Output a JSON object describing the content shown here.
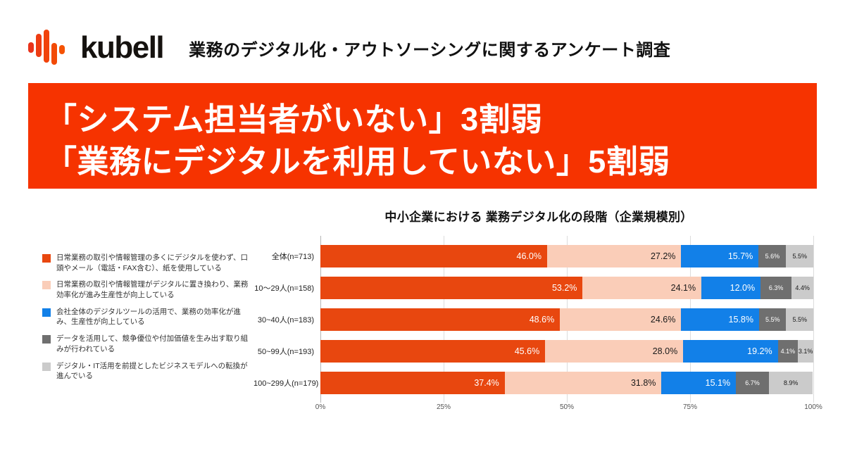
{
  "header": {
    "logo_text": "kubell",
    "logo_icon": "kubell-waveform-bars",
    "subtitle": "業務のデジタル化・アウトソーシングに関するアンケート調査"
  },
  "banner": {
    "line1": "「システム担当者がいない」3割弱",
    "line2": "「業務にデジタルを利用していない」5割弱",
    "background": "#F63300",
    "text_color": "#FFFFFF"
  },
  "chart_data": {
    "type": "bar",
    "stacked": true,
    "orientation": "horizontal",
    "title": "中小企業における 業務デジタル化の段階（企業規模別）",
    "categories": [
      "全体(n=713)",
      "10～29人(n=158)",
      "30~40人(n=183)",
      "50~99人(n=193)",
      "100~299人(n=179)"
    ],
    "series": [
      {
        "name": "日常業務の取引や情報管理の多くにデジタルを使わず、口頭やメール（電話・FAX含む）、紙を使用している",
        "color": "#E8470F",
        "label_color": "#FFFFFF",
        "label_align": "right",
        "values": [
          46.0,
          53.2,
          48.6,
          45.6,
          37.4
        ]
      },
      {
        "name": "日常業務の取引や情報管理がデジタルに置き換わり、業務効率化が進み生産性が向上している",
        "color": "#FACDB8",
        "label_color": "#1A1A1A",
        "label_align": "right",
        "values": [
          27.2,
          24.1,
          24.6,
          28.0,
          31.8
        ]
      },
      {
        "name": "会社全体のデジタルツールの活用で、業務の効率化が進み、生産性が向上している",
        "color": "#1280E8",
        "label_color": "#FFFFFF",
        "label_align": "right",
        "values": [
          15.7,
          12.0,
          15.8,
          19.2,
          15.1
        ]
      },
      {
        "name": "データを活用して、競争優位や付加価値を生み出す取り組みが行われている",
        "color": "#6F6F6F",
        "label_color": "#FFFFFF",
        "label_align": "center",
        "values": [
          5.6,
          6.3,
          5.5,
          4.1,
          6.7
        ]
      },
      {
        "name": "デジタル・IT活用を前提としたビジネスモデルへの転換が進んでいる",
        "color": "#CBCBCB",
        "label_color": "#1A1A1A",
        "label_align": "center",
        "values": [
          5.5,
          4.4,
          5.5,
          3.1,
          8.9
        ]
      }
    ],
    "xlabel": "",
    "ylabel": "",
    "x_axis": {
      "range": [
        0,
        100
      ],
      "ticks": [
        "0%",
        "25%",
        "50%",
        "75%",
        "100%"
      ],
      "tick_values": [
        0,
        25,
        50,
        75,
        100
      ]
    },
    "grid": true,
    "legend_position": "left"
  }
}
